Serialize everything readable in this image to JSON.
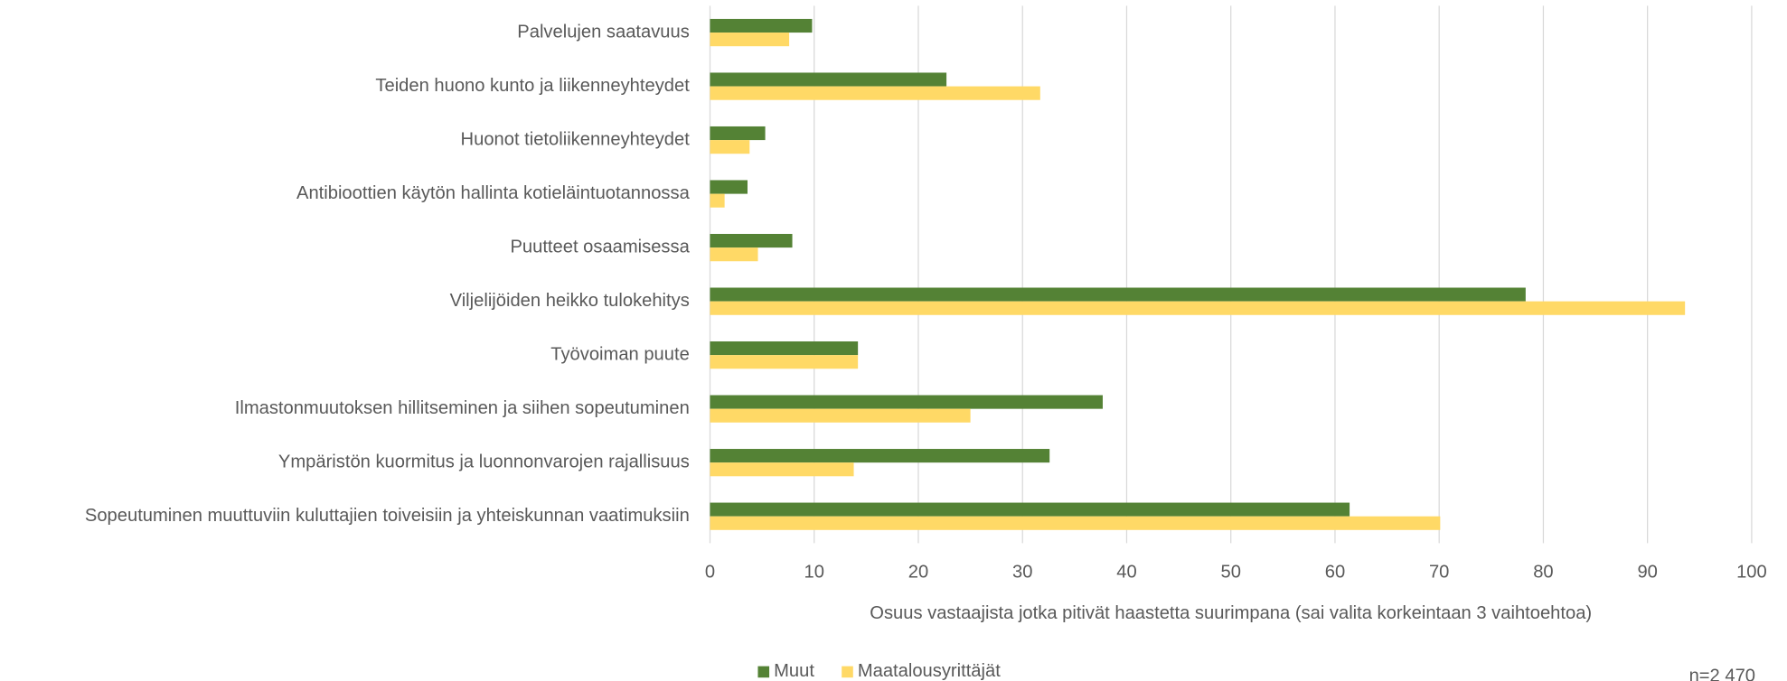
{
  "chart_data": {
    "type": "barh",
    "categories": [
      "Palvelujen saatavuus",
      "Teiden huono kunto ja liikenneyhteydet",
      "Huonot tietoliikenneyhteydet",
      "Antibioottien käytön hallinta kotieläintuotannossa",
      "Puutteet osaamisessa",
      "Viljelijöiden heikko tulokehitys",
      "Työvoiman puute",
      "Ilmastonmuutoksen hillitseminen ja siihen sopeutuminen",
      "Ympäristön kuormitus ja luonnonvarojen rajallisuus",
      "Sopeutuminen muuttuviin kuluttajien toiveisiin ja yhteiskunnan vaatimuksiin"
    ],
    "series": [
      {
        "name": "Muut",
        "color": "#548235",
        "values": [
          9.8,
          22.7,
          5.3,
          3.6,
          7.9,
          78.3,
          14.2,
          37.7,
          32.6,
          61.4
        ]
      },
      {
        "name": "Maatalousyrittäjät",
        "color": "#ffd966",
        "values": [
          7.6,
          31.7,
          3.8,
          1.4,
          4.6,
          93.6,
          14.2,
          25.0,
          13.8,
          70.1
        ]
      }
    ],
    "xlabel": "Osuus vastaajista jotka pitivät haastetta suurimpana (sai valita korkeintaan 3 vaihtoehtoa)",
    "xlim": [
      0,
      100
    ],
    "xticks": [
      0,
      10,
      20,
      30,
      40,
      50,
      60,
      70,
      80,
      90,
      100
    ],
    "grid": true,
    "legend": "bottom",
    "annotation": "n=2 470"
  }
}
